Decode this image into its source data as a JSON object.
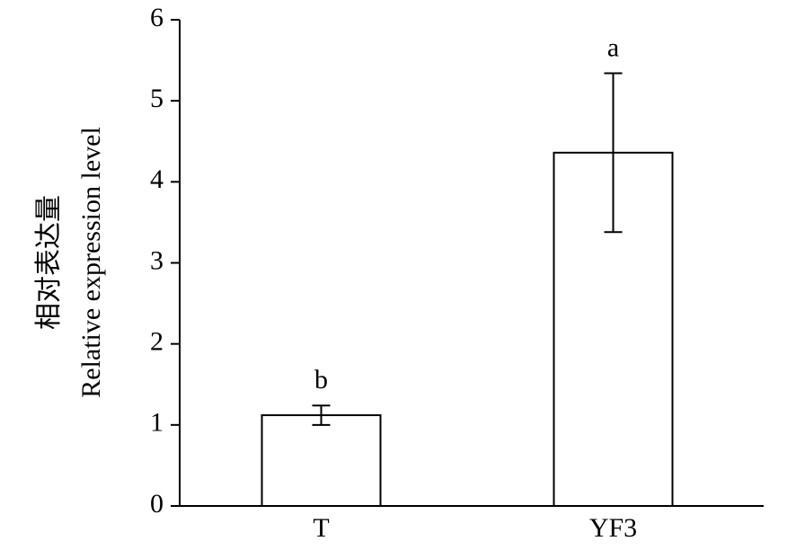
{
  "chart_data": {
    "type": "bar",
    "ylabel": [
      "相对表达量",
      "Relative expression level"
    ],
    "categories": [
      "T",
      "YF3"
    ],
    "values": [
      1.12,
      4.36
    ],
    "errors": [
      0.12,
      0.98
    ],
    "annotations": [
      "b",
      "a"
    ],
    "color": "#ffffff",
    "edgecolor": "#000000",
    "ylim": [
      0,
      6
    ],
    "yticks": [
      0,
      1,
      2,
      3,
      4,
      5,
      6
    ]
  }
}
